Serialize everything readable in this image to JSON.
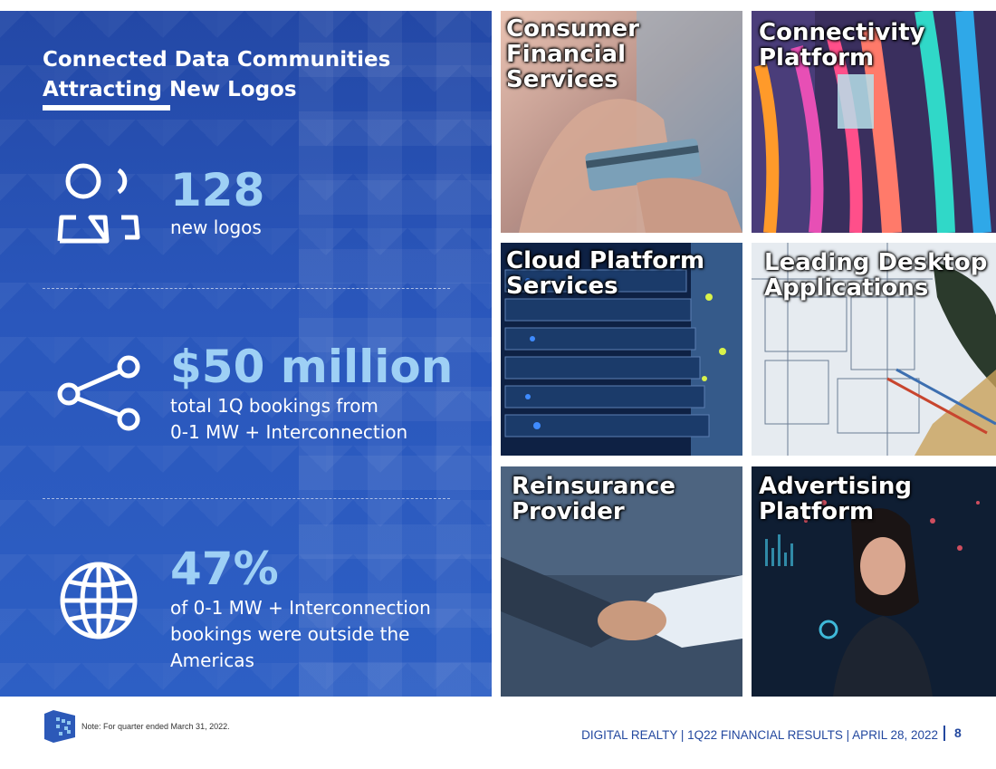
{
  "headline": {
    "line1": "Connected Data Communities",
    "line2": "Attracting New Logos"
  },
  "stats": [
    {
      "icon": "people-icon",
      "value": "128",
      "desc_lines": [
        "new logos"
      ]
    },
    {
      "icon": "network-nodes-icon",
      "value": "$50 million",
      "desc_lines": [
        "total 1Q bookings from",
        "0-1 MW + Interconnection"
      ]
    },
    {
      "icon": "globe-icon",
      "value": "47%",
      "desc_lines": [
        "of 0-1 MW + Interconnection",
        "bookings were outside the",
        "Americas"
      ]
    }
  ],
  "tiles": [
    {
      "name": "consumer-financial-services",
      "lines": [
        "Consumer",
        "Financial Services"
      ]
    },
    {
      "name": "connectivity-platform",
      "lines": [
        "Connectivity",
        "Platform"
      ]
    },
    {
      "name": "cloud-platform-services",
      "lines": [
        "Cloud Platform",
        "Services"
      ]
    },
    {
      "name": "leading-desktop-applications",
      "lines": [
        "Leading Desktop",
        "Applications"
      ]
    },
    {
      "name": "reinsurance-provider",
      "lines": [
        "Reinsurance",
        "Provider"
      ]
    },
    {
      "name": "advertising-platform",
      "lines": [
        "Advertising",
        "Platform"
      ]
    }
  ],
  "footer": {
    "note": "Note:  For quarter ended March 31, 2022.",
    "credit": "DIGITAL REALTY | 1Q22 FINANCIAL RESULTS | APRIL 28, 2022",
    "page_number": "8"
  },
  "colors": {
    "panel_blue": "#2a57bc",
    "accent_light_blue": "#9ed0f5",
    "footer_blue": "#23489f"
  }
}
